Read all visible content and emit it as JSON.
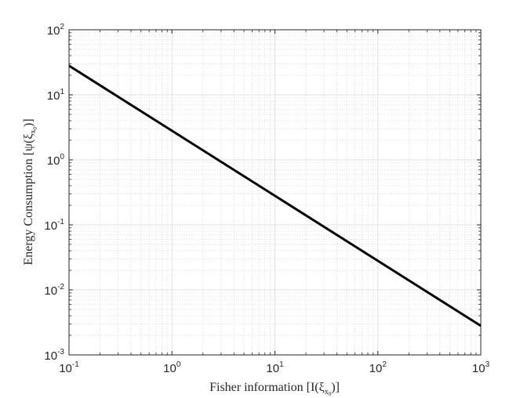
{
  "chart_data": {
    "type": "line",
    "xlabel": "Fisher information [I(ξ",
    "xlabel_sub": "x",
    "xlabel_subsub": "0",
    "xlabel_end": ")]",
    "ylabel": "Energy Consumption [ψ(ξ",
    "ylabel_sub": "x",
    "ylabel_subsub": "0",
    "ylabel_end": ")]",
    "x_scale": "log",
    "y_scale": "log",
    "xlim": [
      0.1,
      1000
    ],
    "ylim": [
      0.001,
      100
    ],
    "grid": true,
    "minor_grid": true,
    "x_tick_labels": [
      {
        "base": "10",
        "exp": "-1"
      },
      {
        "base": "10",
        "exp": "0"
      },
      {
        "base": "10",
        "exp": "1"
      },
      {
        "base": "10",
        "exp": "2"
      },
      {
        "base": "10",
        "exp": "3"
      }
    ],
    "y_tick_labels": [
      {
        "base": "10",
        "exp": "-3"
      },
      {
        "base": "10",
        "exp": "-2"
      },
      {
        "base": "10",
        "exp": "-1"
      },
      {
        "base": "10",
        "exp": "0"
      },
      {
        "base": "10",
        "exp": "1"
      },
      {
        "base": "10",
        "exp": "2"
      }
    ],
    "series": [
      {
        "color": "#000000",
        "x": [
          0.1,
          1000
        ],
        "y": [
          28,
          0.0028
        ]
      }
    ]
  }
}
